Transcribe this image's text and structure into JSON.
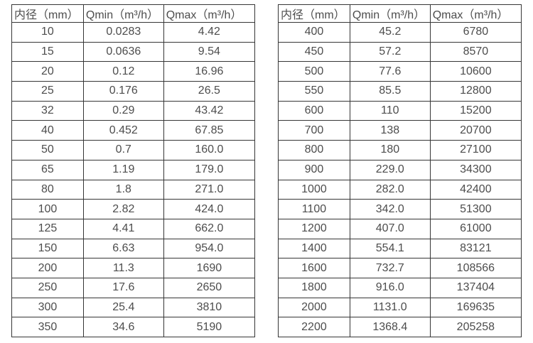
{
  "colors": {
    "background": "#ffffff",
    "border": "#363636",
    "text": "#4d4d4d"
  },
  "table_left": {
    "headers": [
      "内径（mm）",
      "Qmin（m³/h）",
      "Qmax（m³/h）"
    ],
    "rows": [
      [
        "10",
        "0.0283",
        "4.42"
      ],
      [
        "15",
        "0.0636",
        "9.54"
      ],
      [
        "20",
        "0.12",
        "16.96"
      ],
      [
        "25",
        "0.176",
        "26.5"
      ],
      [
        "32",
        "0.29",
        "43.42"
      ],
      [
        "40",
        "0.452",
        "67.85"
      ],
      [
        "50",
        "0.7",
        "160.0"
      ],
      [
        "65",
        "1.19",
        "179.0"
      ],
      [
        "80",
        "1.8",
        "271.0"
      ],
      [
        "100",
        "2.82",
        "424.0"
      ],
      [
        "125",
        "4.41",
        "662.0"
      ],
      [
        "150",
        "6.63",
        "954.0"
      ],
      [
        "200",
        "11.3",
        "1690"
      ],
      [
        "250",
        "17.6",
        "2650"
      ],
      [
        "300",
        "25.4",
        "3810"
      ],
      [
        "350",
        "34.6",
        "5190"
      ]
    ]
  },
  "table_right": {
    "headers": [
      "内径（mm）",
      "Qmin（m³/h）",
      "Qmax（m³/h）"
    ],
    "rows": [
      [
        "400",
        "45.2",
        "6780"
      ],
      [
        "450",
        "57.2",
        "8570"
      ],
      [
        "500",
        "77.6",
        "10600"
      ],
      [
        "550",
        "85.5",
        "12800"
      ],
      [
        "600",
        "110",
        "15200"
      ],
      [
        "700",
        "138",
        "20700"
      ],
      [
        "800",
        "180",
        "27100"
      ],
      [
        "900",
        "229.0",
        "34300"
      ],
      [
        "1000",
        "282.0",
        "42400"
      ],
      [
        "1100",
        "342.0",
        "51300"
      ],
      [
        "1200",
        "407.0",
        "61000"
      ],
      [
        "1400",
        "554.1",
        "83121"
      ],
      [
        "1600",
        "732.7",
        "108566"
      ],
      [
        "1800",
        "916.0",
        "137404"
      ],
      [
        "2000",
        "1131.0",
        "169635"
      ],
      [
        "2200",
        "1368.4",
        "205258"
      ]
    ]
  }
}
